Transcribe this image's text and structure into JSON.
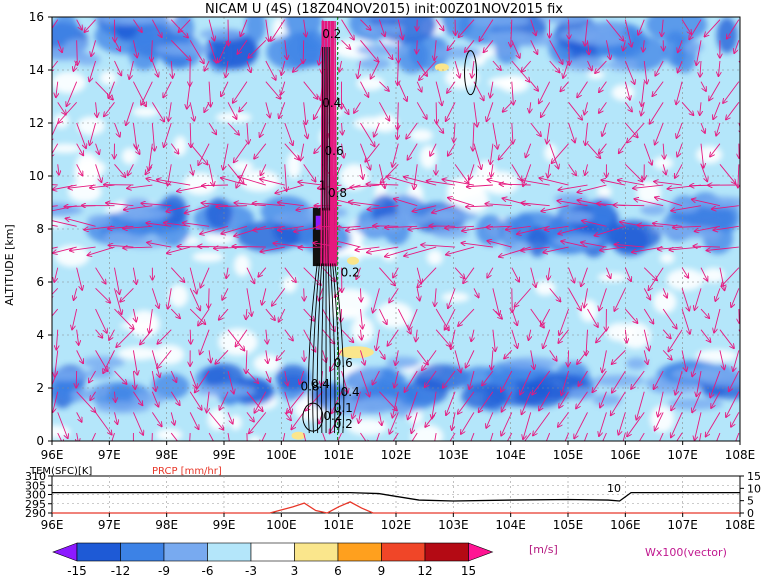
{
  "title": "NICAM U (4S) (18Z04NOV2015) init:00Z01NOV2015 fix",
  "main": {
    "ylabel": "ALTITUDE [km]",
    "ylim": [
      0,
      16
    ],
    "yticks": [
      0,
      2,
      4,
      6,
      8,
      10,
      12,
      14,
      16
    ],
    "xlim": [
      96,
      108
    ],
    "xticks": [
      "96E",
      "97E",
      "98E",
      "99E",
      "100E",
      "101E",
      "102E",
      "103E",
      "104E",
      "105E",
      "106E",
      "107E",
      "108E"
    ],
    "contour_labels": [
      "0.2",
      "0.4",
      "0.6",
      "0.8",
      "1",
      "0.2",
      "0.6",
      "0.4",
      "0.8",
      "0.1",
      "0.2",
      "0.4",
      "0.2"
    ]
  },
  "sub": {
    "tem_label": "TEM(SFC)[K]",
    "prcp_label": "PRCP [mm/hr]",
    "left_ticks": [
      "310",
      "305",
      "300",
      "295",
      "290"
    ],
    "right_ticks": [
      "15",
      "10",
      "5",
      "0"
    ],
    "annotation": "10",
    "xticks": [
      "96E",
      "97E",
      "98E",
      "99E",
      "100E",
      "101E",
      "102E",
      "103E",
      "104E",
      "105E",
      "106E",
      "107E",
      "108E"
    ]
  },
  "colorbar": {
    "labels": [
      "-15",
      "-12",
      "-9",
      "-6",
      "-3",
      "3",
      "6",
      "9",
      "12",
      "15"
    ],
    "unit": "[m/s]",
    "colors": [
      "#8c1aff",
      "#1e5ad6",
      "#3c82e6",
      "#78aaf0",
      "#b4e6fa",
      "#ffffff",
      "#fae68c",
      "#ffa01e",
      "#f04628",
      "#b40a14",
      "#ff1493"
    ]
  },
  "vector_label": "Wx100(vector)",
  "chart_data": {
    "type": "heatmap",
    "title": "NICAM U (4S) (18Z04NOV2015) init:00Z01NOV2015 fix",
    "xlabel": "",
    "ylabel": "ALTITUDE [km]",
    "xlim": [
      96,
      108
    ],
    "ylim": [
      0,
      16
    ],
    "value_unit": "[m/s]",
    "color_levels": [
      -15,
      -12,
      -9,
      -6,
      -3,
      3,
      6,
      9,
      12,
      15
    ],
    "features": [
      {
        "layer_km": [
          7.5,
          8.8
        ],
        "u_ms": -9
      },
      {
        "layer_km": [
          1.5,
          2.6
        ],
        "u_ms": -6
      },
      {
        "layer_km": [
          14.5,
          16
        ],
        "u_ms": -9
      }
    ],
    "subplot": {
      "series": [
        {
          "name": "TEM(SFC)[K]",
          "x": [
            96,
            100,
            101.2,
            101.7,
            102.4,
            103,
            104,
            105,
            105.7,
            105.9,
            106.1,
            108
          ],
          "values": [
            301,
            301,
            301,
            300.5,
            297,
            296.5,
            297,
            297.3,
            297,
            296.5,
            301,
            301
          ],
          "ylim": [
            290,
            310
          ]
        },
        {
          "name": "PRCP [mm/hr]",
          "x": [
            96,
            99.8,
            100.2,
            100.4,
            100.6,
            100.8,
            101,
            101.2,
            101.4,
            101.6,
            108
          ],
          "values": [
            0,
            0,
            2.5,
            4,
            1,
            0,
            2.5,
            4.5,
            2,
            0,
            0
          ],
          "ylim": [
            0,
            15
          ]
        }
      ]
    }
  }
}
